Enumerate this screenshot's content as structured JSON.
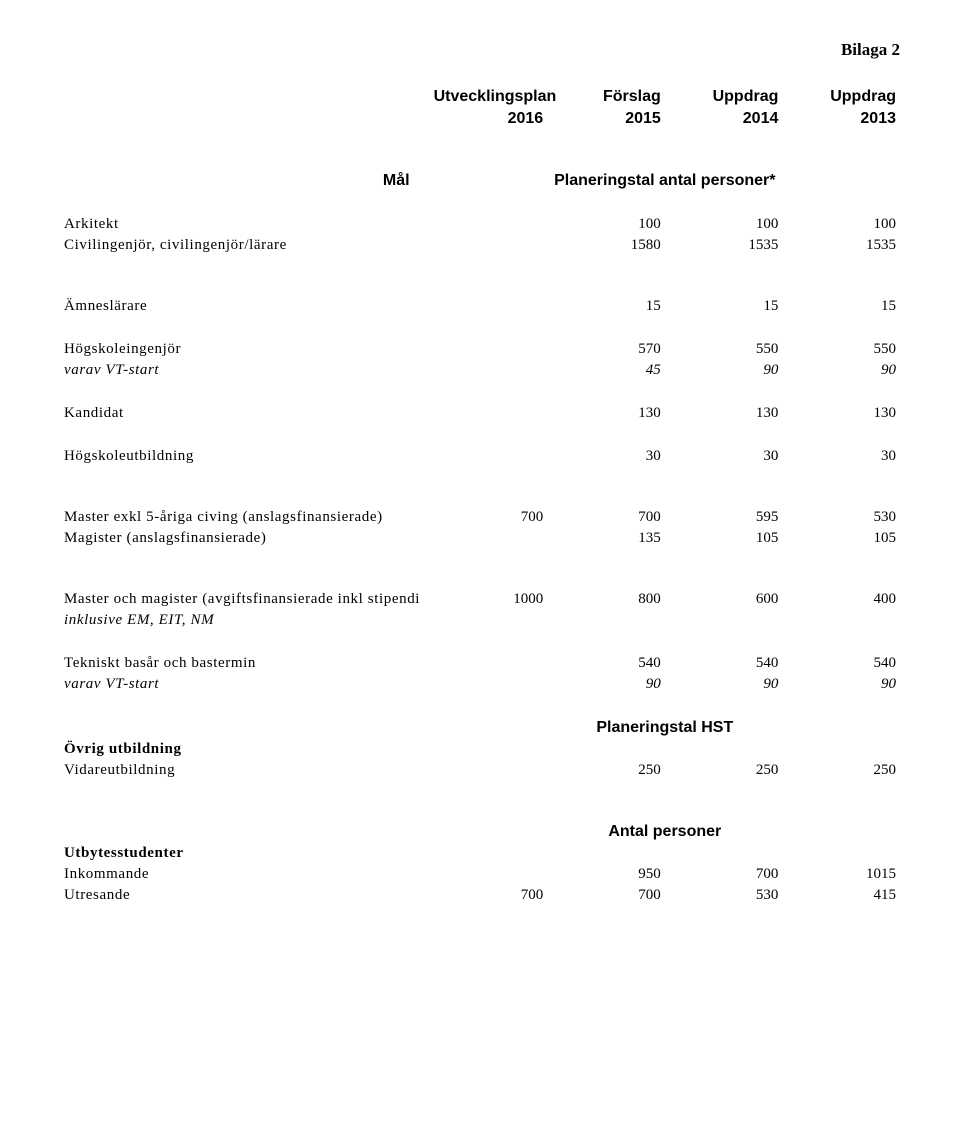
{
  "page": {
    "title": "Bilaga 2"
  },
  "headers": {
    "utv1": "Utvecklingsplan",
    "utv2": "2016",
    "for1": "Förslag",
    "for2": "2015",
    "u14a": "Uppdrag",
    "u14b": "2014",
    "u13a": "Uppdrag",
    "u13b": "2013",
    "mal": "Mål",
    "section1": "Planeringstal antal personer*",
    "section2": "Planeringstal HST",
    "section3": "Antal personer"
  },
  "rows": {
    "arkitekt": {
      "label": "Arkitekt",
      "f": "100",
      "c14": "100",
      "c13": "100"
    },
    "civing": {
      "label": "Civilingenjör, civilingenjör/lärare",
      "f": "1580",
      "c14": "1535",
      "c13": "1535"
    },
    "amneslarare": {
      "label": "Ämneslärare",
      "f": "15",
      "c14": "15",
      "c13": "15"
    },
    "hogskoleing": {
      "label": "Högskoleingenjör",
      "f": "570",
      "c14": "550",
      "c13": "550"
    },
    "vtstart1": {
      "label": "varav VT-start",
      "f": "45",
      "c14": "90",
      "c13": "90"
    },
    "kandidat": {
      "label": "Kandidat",
      "f": "130",
      "c14": "130",
      "c13": "130"
    },
    "hogskoleutb": {
      "label": "Högskoleutbildning",
      "f": "30",
      "c14": "30",
      "c13": "30"
    },
    "master5": {
      "label": "Master exkl 5-åriga civing (anslagsfinansierade)",
      "u": "700",
      "f": "700",
      "c14": "595",
      "c13": "530"
    },
    "magister": {
      "label": "Magister (anslagsfinansierade)",
      "f": "135",
      "c14": "105",
      "c13": "105"
    },
    "masterAvg": {
      "label": "Master och magister (avgiftsfinansierade inkl stipendi",
      "u": "1000",
      "f": "800",
      "c14": "600",
      "c13": "400"
    },
    "inklusive": {
      "label": "inklusive EM, EIT, NM"
    },
    "tekniskt": {
      "label": "Tekniskt basår och bastermin",
      "f": "540",
      "c14": "540",
      "c13": "540"
    },
    "vtstart2": {
      "label": "varav VT-start",
      "f": "90",
      "c14": "90",
      "c13": "90"
    },
    "ovrig": {
      "label": "Övrig utbildning"
    },
    "vidare": {
      "label": "Vidareutbildning",
      "f": "250",
      "c14": "250",
      "c13": "250"
    },
    "utbytes": {
      "label": "Utbytesstudenter"
    },
    "inkommande": {
      "label": "Inkommande",
      "f": "950",
      "c14": "700",
      "c13": "1015"
    },
    "utresande": {
      "label": "Utresande",
      "u": "700",
      "f": "700",
      "c14": "530",
      "c13": "415"
    }
  }
}
